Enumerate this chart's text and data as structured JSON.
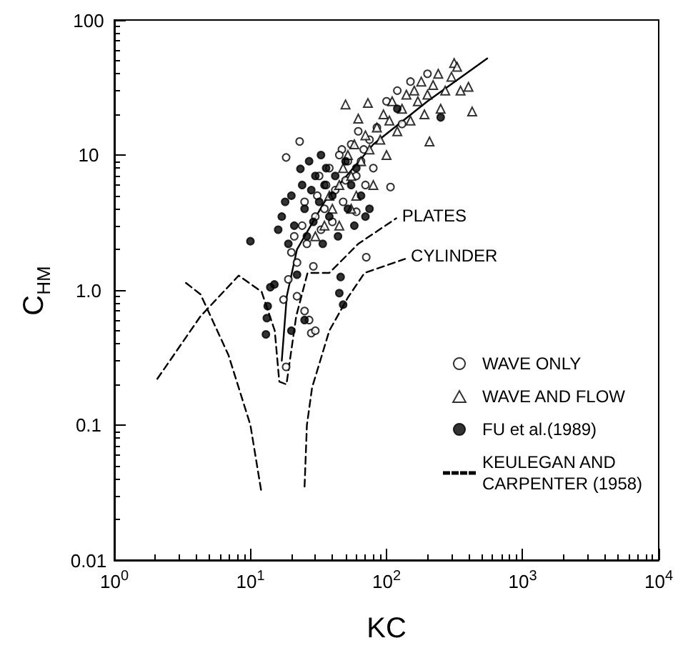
{
  "chart_data": {
    "type": "scatter",
    "xlabel": "KC",
    "ylabel": "C$_{HM}$",
    "log": "xy",
    "xlim": [
      1,
      10000
    ],
    "ylim": [
      0.01,
      100
    ],
    "xticks": [
      {
        "value": 1,
        "label": "10$^{0}$"
      },
      {
        "value": 10,
        "label": "10$^{1}$"
      },
      {
        "value": 100,
        "label": "10$^{2}$"
      },
      {
        "value": 1000,
        "label": "10$^{3}$"
      },
      {
        "value": 10000,
        "label": "10$^{4}$"
      }
    ],
    "yticks": [
      0.01,
      0.1,
      {
        "value": 1,
        "label": "1.0"
      },
      10,
      100
    ],
    "grid": false,
    "legend": "bottom right",
    "annotations": [
      {
        "text": "PLATES",
        "x": 118,
        "y": 3.4
      },
      {
        "text": "CYLINDER",
        "x": 137,
        "y": 1.7
      }
    ],
    "series": [
      {
        "name": "WAVE ONLY",
        "type": "scatter",
        "marker": "circle",
        "color": "#ffffff",
        "x": [
          17.5,
          18.3,
          19,
          20,
          21,
          22,
          23,
          18.3,
          24,
          25,
          26,
          27,
          28,
          29,
          30,
          31,
          32,
          33,
          35,
          36,
          38,
          40,
          42,
          47,
          45,
          48,
          50,
          52,
          55,
          60,
          60,
          62,
          65,
          68,
          70,
          71,
          75,
          80,
          85,
          130,
          100,
          107,
          120,
          150,
          200,
          25,
          22,
          30
        ],
        "values": [
          0.85,
          0.27,
          1.2,
          1.9,
          2.5,
          1.6,
          12.6,
          9.6,
          3,
          4.5,
          2.2,
          0.6,
          0.48,
          1.5,
          3.5,
          5,
          7,
          2.8,
          4,
          6,
          8,
          3.2,
          5.5,
          11,
          10,
          4.5,
          6.5,
          9,
          12,
          3.8,
          7,
          15,
          9,
          11,
          6,
          1.75,
          13,
          8,
          16,
          17,
          25,
          5.8,
          30,
          35,
          40,
          0.7,
          0.9,
          0.5
        ]
      },
      {
        "name": "WAVE AND FLOW",
        "type": "scatter",
        "marker": "triangle",
        "color": "#ffffff",
        "x": [
          35,
          38,
          40,
          45,
          48,
          50,
          52,
          55,
          58,
          60,
          62,
          65,
          70,
          73,
          75,
          80,
          85,
          90,
          95,
          100,
          105,
          110,
          120,
          130,
          140,
          150,
          160,
          170,
          180,
          190,
          200,
          207,
          220,
          240,
          250,
          270,
          300,
          314,
          330,
          350,
          400,
          426,
          30,
          45,
          55
        ],
        "values": [
          3,
          5,
          4,
          6,
          8,
          23.7,
          10,
          7,
          12,
          5,
          18.6,
          9,
          14,
          24.3,
          11,
          6,
          16,
          13,
          20,
          10,
          18,
          25,
          15,
          22,
          28,
          18,
          30,
          25,
          35,
          20,
          28,
          12.6,
          33,
          40,
          22,
          30,
          38,
          48,
          45,
          30,
          32,
          21,
          2.5,
          3,
          4
        ]
      },
      {
        "name": "FU et al.(1989)",
        "type": "scatter",
        "marker": "circle",
        "color": "#000000",
        "x": [
          10,
          13,
          13.2,
          13.4,
          14,
          15,
          16,
          17,
          18,
          19,
          20,
          21,
          22,
          23.3,
          24,
          25,
          26,
          27,
          28,
          29,
          30,
          32,
          33,
          34,
          35,
          36,
          38,
          40,
          42,
          44,
          45,
          46,
          48,
          50,
          52,
          55,
          58,
          60,
          65,
          70,
          75,
          250,
          120,
          25,
          20
        ],
        "values": [
          2.3,
          0.47,
          0.62,
          0.76,
          1.05,
          1.1,
          2.8,
          3.5,
          4.5,
          2.2,
          5,
          3,
          1.3,
          7.9,
          6,
          4,
          2.5,
          9,
          5.5,
          3.2,
          7,
          4.5,
          10,
          2.2,
          6,
          8,
          3.5,
          5,
          7,
          2.5,
          0.95,
          1.25,
          0.78,
          9,
          4,
          6,
          3,
          8,
          5,
          3.5,
          4,
          19,
          22,
          0.6,
          0.5
        ]
      },
      {
        "type": "line",
        "line_style": "solid",
        "marker": "none",
        "color": "#000000",
        "x": [
          17,
          18.5,
          22,
          35,
          80,
          200,
          550
        ],
        "values": [
          0.3,
          0.9,
          2,
          4.5,
          12,
          25,
          52
        ]
      },
      {
        "name": "KEULEGAN AND CARPENTER (1958)",
        "type": "line",
        "line_style": "dashed",
        "marker": "none",
        "color": "#000000",
        "x": [
          2.07,
          4.3,
          8.2,
          12.1,
          15.1,
          16.3,
          18.4,
          21.7,
          26.3,
          38,
          62,
          118,
          null,
          3.36,
          4.3,
          6.9,
          10,
          12.1,
          null,
          25,
          26,
          28.4,
          38,
          52,
          69,
          137
        ],
        "values": [
          0.22,
          0.64,
          1.28,
          0.97,
          0.5,
          0.21,
          0.2,
          0.64,
          1.34,
          1.34,
          2.2,
          3.4,
          null,
          1.13,
          0.93,
          0.33,
          0.1,
          0.031,
          null,
          0.035,
          0.1,
          0.19,
          0.5,
          0.88,
          1.34,
          1.7
        ]
      }
    ]
  }
}
